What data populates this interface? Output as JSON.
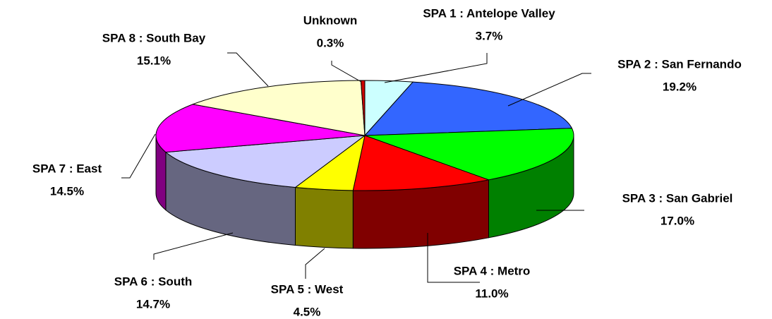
{
  "chart_data": {
    "type": "pie3d",
    "categories": [
      "SPA 1 : Antelope Valley",
      "SPA 2 : San Fernando",
      "SPA 3 : San Gabriel",
      "SPA 4 : Metro",
      "SPA 5 : West",
      "SPA 6 : South",
      "SPA 7 : East",
      "SPA 8 : South Bay",
      "Unknown"
    ],
    "values": [
      3.7,
      19.2,
      17.0,
      11.0,
      4.5,
      14.7,
      14.5,
      15.1,
      0.3
    ],
    "value_labels": [
      "3.7%",
      "19.2%",
      "17.0%",
      "11.0%",
      "4.5%",
      "14.7%",
      "14.5%",
      "15.1%",
      "0.3%"
    ],
    "colors": [
      "#ccffff",
      "#3366ff",
      "#00ff00",
      "#ff0000",
      "#ffff00",
      "#ccccff",
      "#ff00ff",
      "#ffffcc",
      "#cc0000"
    ]
  }
}
